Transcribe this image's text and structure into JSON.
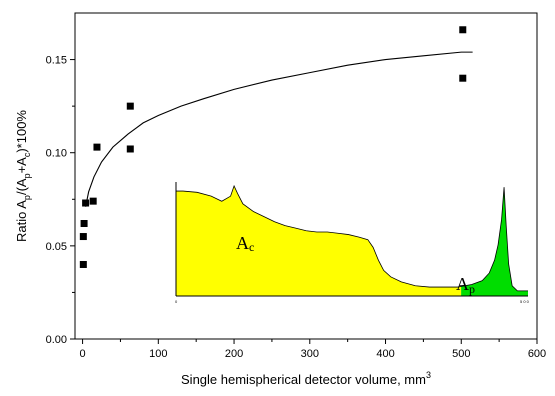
{
  "chart_data": {
    "type": "scatter",
    "xlabel": {
      "main": "Single hemispherical detector volume, mm",
      "sup": "3"
    },
    "ylabel": {
      "p1": "Ratio A",
      "s1": "p",
      "p2": "/(A",
      "s2": "p",
      "p3": "+A",
      "s3": "c",
      "p4": ")*100%"
    },
    "xlim": [
      -10,
      600
    ],
    "ylim": [
      0,
      0.175
    ],
    "x_ticks": [
      0,
      100,
      200,
      300,
      400,
      500,
      600
    ],
    "x_tick_labels": [
      "0",
      "100",
      "200",
      "300",
      "400",
      "500",
      "600"
    ],
    "y_ticks": [
      0,
      0.05,
      0.1,
      0.15
    ],
    "y_tick_labels": [
      "0.00",
      "0.05",
      "0.10",
      "0.15"
    ],
    "points": [
      {
        "x": 1,
        "y": 0.04
      },
      {
        "x": 1,
        "y": 0.055
      },
      {
        "x": 2,
        "y": 0.062
      },
      {
        "x": 4,
        "y": 0.073
      },
      {
        "x": 14,
        "y": 0.074
      },
      {
        "x": 19,
        "y": 0.103
      },
      {
        "x": 63,
        "y": 0.125
      },
      {
        "x": 63,
        "y": 0.102
      },
      {
        "x": 502,
        "y": 0.166
      },
      {
        "x": 502,
        "y": 0.14
      }
    ],
    "fit_curve": {
      "x": [
        4,
        8,
        15,
        25,
        40,
        60,
        80,
        100,
        130,
        160,
        200,
        250,
        300,
        350,
        400,
        450,
        500,
        515
      ],
      "y": [
        0.071,
        0.079,
        0.087,
        0.095,
        0.103,
        0.11,
        0.116,
        0.12,
        0.125,
        0.129,
        0.134,
        0.139,
        0.143,
        0.147,
        0.15,
        0.152,
        0.154,
        0.154
      ]
    },
    "inset": {
      "type": "area",
      "label_left": {
        "main": "A",
        "sub": "c"
      },
      "label_right": {
        "main": "A",
        "sub": "p"
      },
      "tick_left": "0",
      "tick_right": "5 0 0",
      "fill_left": "#ffff00",
      "fill_right": "#00dd00",
      "split": 0.81,
      "profile": [
        [
          0.0,
          0.82
        ],
        [
          0.02,
          0.82
        ],
        [
          0.06,
          0.81
        ],
        [
          0.1,
          0.78
        ],
        [
          0.13,
          0.74
        ],
        [
          0.155,
          0.78
        ],
        [
          0.165,
          0.86
        ],
        [
          0.175,
          0.8
        ],
        [
          0.19,
          0.72
        ],
        [
          0.22,
          0.66
        ],
        [
          0.25,
          0.62
        ],
        [
          0.28,
          0.58
        ],
        [
          0.31,
          0.55
        ],
        [
          0.34,
          0.53
        ],
        [
          0.37,
          0.51
        ],
        [
          0.4,
          0.5
        ],
        [
          0.43,
          0.5
        ],
        [
          0.46,
          0.49
        ],
        [
          0.49,
          0.48
        ],
        [
          0.52,
          0.46
        ],
        [
          0.545,
          0.44
        ],
        [
          0.56,
          0.38
        ],
        [
          0.575,
          0.28
        ],
        [
          0.59,
          0.2
        ],
        [
          0.61,
          0.15
        ],
        [
          0.64,
          0.11
        ],
        [
          0.68,
          0.08
        ],
        [
          0.72,
          0.07
        ],
        [
          0.76,
          0.07
        ],
        [
          0.8,
          0.07
        ],
        [
          0.84,
          0.09
        ],
        [
          0.87,
          0.12
        ],
        [
          0.89,
          0.18
        ],
        [
          0.905,
          0.28
        ],
        [
          0.915,
          0.4
        ],
        [
          0.925,
          0.6
        ],
        [
          0.932,
          0.85
        ],
        [
          0.938,
          0.55
        ],
        [
          0.945,
          0.25
        ],
        [
          0.955,
          0.08
        ],
        [
          0.97,
          0.04
        ],
        [
          1.0,
          0.04
        ]
      ]
    }
  }
}
